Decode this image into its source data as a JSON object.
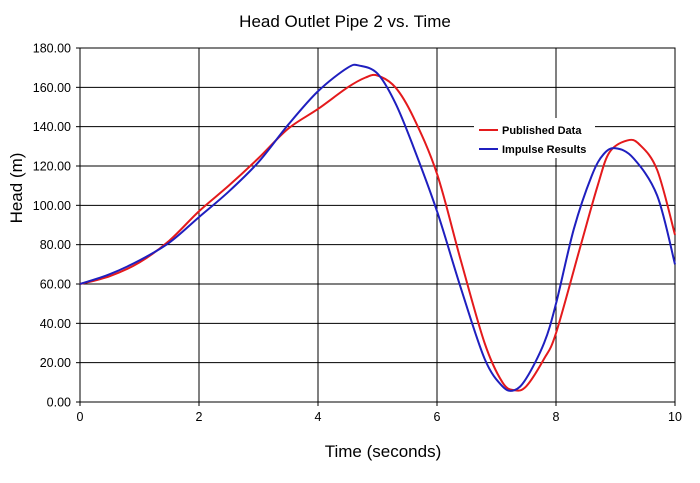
{
  "chart_data": {
    "type": "line",
    "title": "Head Outlet Pipe 2 vs. Time",
    "xlabel": "Time (seconds)",
    "ylabel": "Head (m)",
    "xlim": [
      0,
      10
    ],
    "ylim": [
      0,
      180
    ],
    "x_ticks": [
      "0",
      "2",
      "4",
      "6",
      "8",
      "10"
    ],
    "y_ticks": [
      "0.00",
      "20.00",
      "40.00",
      "60.00",
      "80.00",
      "100.00",
      "120.00",
      "140.00",
      "160.00",
      "180.00"
    ],
    "grid": true,
    "legend_position": "right",
    "series": [
      {
        "name": "Published Data",
        "color": "#e41a1c",
        "points": [
          [
            0,
            60
          ],
          [
            0.5,
            64
          ],
          [
            1,
            71
          ],
          [
            1.5,
            82
          ],
          [
            2,
            97
          ],
          [
            2.5,
            110
          ],
          [
            3,
            124
          ],
          [
            3.5,
            139
          ],
          [
            4,
            149
          ],
          [
            4.5,
            160
          ],
          [
            4.8,
            165
          ],
          [
            5,
            166
          ],
          [
            5.3,
            160
          ],
          [
            5.6,
            145
          ],
          [
            6,
            116
          ],
          [
            6.4,
            72
          ],
          [
            6.8,
            30
          ],
          [
            7.1,
            10
          ],
          [
            7.3,
            6
          ],
          [
            7.5,
            8
          ],
          [
            7.8,
            22
          ],
          [
            8,
            35
          ],
          [
            8.4,
            78
          ],
          [
            8.7,
            110
          ],
          [
            8.9,
            127
          ],
          [
            9.2,
            133
          ],
          [
            9.4,
            131
          ],
          [
            9.7,
            118
          ],
          [
            10,
            85
          ]
        ]
      },
      {
        "name": "Impulse Results",
        "color": "#1f1fbf",
        "points": [
          [
            0,
            60
          ],
          [
            0.5,
            65
          ],
          [
            1,
            72
          ],
          [
            1.5,
            81
          ],
          [
            2,
            94
          ],
          [
            2.5,
            107
          ],
          [
            3,
            122
          ],
          [
            3.5,
            141
          ],
          [
            4,
            158
          ],
          [
            4.5,
            170
          ],
          [
            4.7,
            171
          ],
          [
            5,
            167
          ],
          [
            5.3,
            152
          ],
          [
            5.6,
            130
          ],
          [
            6,
            97
          ],
          [
            6.4,
            58
          ],
          [
            6.8,
            22
          ],
          [
            7.1,
            8
          ],
          [
            7.3,
            6
          ],
          [
            7.5,
            12
          ],
          [
            7.8,
            30
          ],
          [
            8,
            50
          ],
          [
            8.3,
            88
          ],
          [
            8.6,
            115
          ],
          [
            8.8,
            126
          ],
          [
            9,
            129
          ],
          [
            9.3,
            124
          ],
          [
            9.7,
            105
          ],
          [
            10,
            70
          ]
        ]
      }
    ]
  }
}
